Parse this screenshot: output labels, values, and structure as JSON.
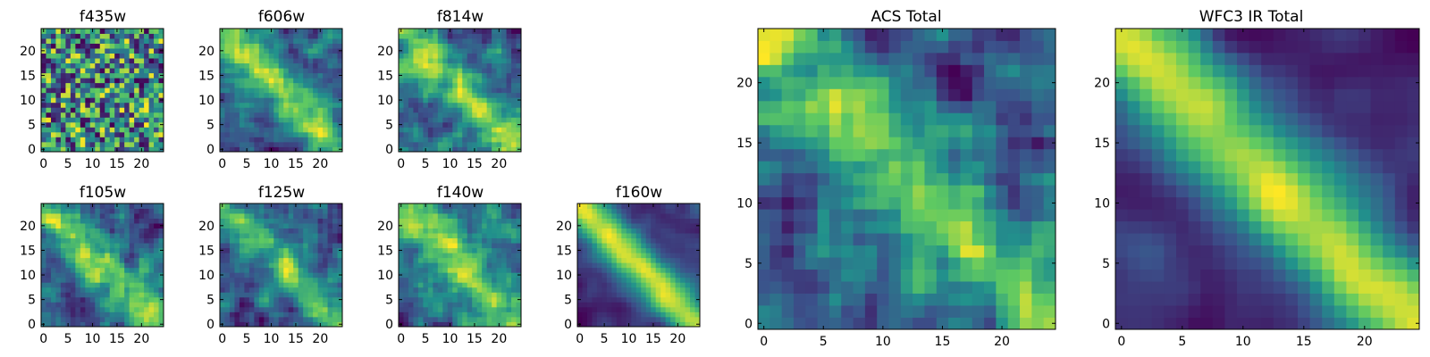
{
  "figure": {
    "panels": [
      {
        "id": "f435w",
        "title": "f435w",
        "xticks": [
          0,
          5,
          10,
          15,
          20
        ],
        "yticks": [
          0,
          5,
          10,
          15,
          20
        ],
        "seed": 11,
        "scale": "pixel",
        "pattern": "noise"
      },
      {
        "id": "f606w",
        "title": "f606w",
        "xticks": [
          0,
          5,
          10,
          15,
          20
        ],
        "yticks": [
          0,
          5,
          10,
          15,
          20
        ],
        "seed": 22,
        "scale": "pixel",
        "pattern": "diag"
      },
      {
        "id": "f814w",
        "title": "f814w",
        "xticks": [
          0,
          5,
          10,
          15,
          20
        ],
        "yticks": [
          0,
          5,
          10,
          15,
          20
        ],
        "seed": 33,
        "scale": "pixel",
        "pattern": "diag"
      },
      {
        "id": "f105w",
        "title": "f105w",
        "xticks": [
          0,
          5,
          10,
          15,
          20
        ],
        "yticks": [
          0,
          5,
          10,
          15,
          20
        ],
        "seed": 44,
        "scale": "pixel",
        "pattern": "diag"
      },
      {
        "id": "f125w",
        "title": "f125w",
        "xticks": [
          0,
          5,
          10,
          15,
          20
        ],
        "yticks": [
          0,
          5,
          10,
          15,
          20
        ],
        "seed": 55,
        "scale": "pixel",
        "pattern": "diag"
      },
      {
        "id": "f140w",
        "title": "f140w",
        "xticks": [
          0,
          5,
          10,
          15,
          20
        ],
        "yticks": [
          0,
          5,
          10,
          15,
          20
        ],
        "seed": 66,
        "scale": "pixel",
        "pattern": "diag"
      },
      {
        "id": "f160w",
        "title": "f160w",
        "xticks": [
          0,
          5,
          10,
          15,
          20
        ],
        "yticks": [
          0,
          5,
          10,
          15,
          20
        ],
        "seed": 77,
        "scale": "pixel",
        "pattern": "diag-strong"
      },
      {
        "id": "acs-total",
        "title": "ACS Total",
        "xticks": [
          0,
          5,
          10,
          15,
          20
        ],
        "yticks": [
          0,
          5,
          10,
          15,
          20
        ],
        "seed": 88,
        "scale": "pixel",
        "pattern": "diag"
      },
      {
        "id": "wfc3-ir-total",
        "title": "WFC3 IR Total",
        "xticks": [
          0,
          5,
          10,
          15,
          20
        ],
        "yticks": [
          0,
          5,
          10,
          15,
          20
        ],
        "seed": 99,
        "scale": "pixel",
        "pattern": "diag-strong"
      }
    ]
  },
  "chart_data": [
    {
      "type": "heatmap",
      "title": "f435w",
      "xlim": [
        0,
        24
      ],
      "ylim": [
        0,
        24
      ],
      "grid_size": [
        25,
        25
      ],
      "colormap": "viridis"
    },
    {
      "type": "heatmap",
      "title": "f606w",
      "xlim": [
        0,
        24
      ],
      "ylim": [
        0,
        24
      ],
      "grid_size": [
        25,
        25
      ],
      "colormap": "viridis"
    },
    {
      "type": "heatmap",
      "title": "f814w",
      "xlim": [
        0,
        24
      ],
      "ylim": [
        0,
        24
      ],
      "grid_size": [
        25,
        25
      ],
      "colormap": "viridis"
    },
    {
      "type": "heatmap",
      "title": "f105w",
      "xlim": [
        0,
        24
      ],
      "ylim": [
        0,
        24
      ],
      "grid_size": [
        25,
        25
      ],
      "colormap": "viridis"
    },
    {
      "type": "heatmap",
      "title": "f125w",
      "xlim": [
        0,
        24
      ],
      "ylim": [
        0,
        24
      ],
      "grid_size": [
        25,
        25
      ],
      "colormap": "viridis"
    },
    {
      "type": "heatmap",
      "title": "f140w",
      "xlim": [
        0,
        24
      ],
      "ylim": [
        0,
        24
      ],
      "grid_size": [
        25,
        25
      ],
      "colormap": "viridis"
    },
    {
      "type": "heatmap",
      "title": "f160w",
      "xlim": [
        0,
        24
      ],
      "ylim": [
        0,
        24
      ],
      "grid_size": [
        25,
        25
      ],
      "colormap": "viridis"
    },
    {
      "type": "heatmap",
      "title": "ACS Total",
      "xlim": [
        0,
        24
      ],
      "ylim": [
        0,
        24
      ],
      "grid_size": [
        25,
        25
      ],
      "colormap": "viridis"
    },
    {
      "type": "heatmap",
      "title": "WFC3 IR Total",
      "xlim": [
        0,
        24
      ],
      "ylim": [
        0,
        24
      ],
      "grid_size": [
        25,
        25
      ],
      "colormap": "viridis"
    }
  ],
  "colors": {
    "viridis": [
      "#440154",
      "#3b528b",
      "#21918c",
      "#5ec962",
      "#fde725"
    ]
  }
}
